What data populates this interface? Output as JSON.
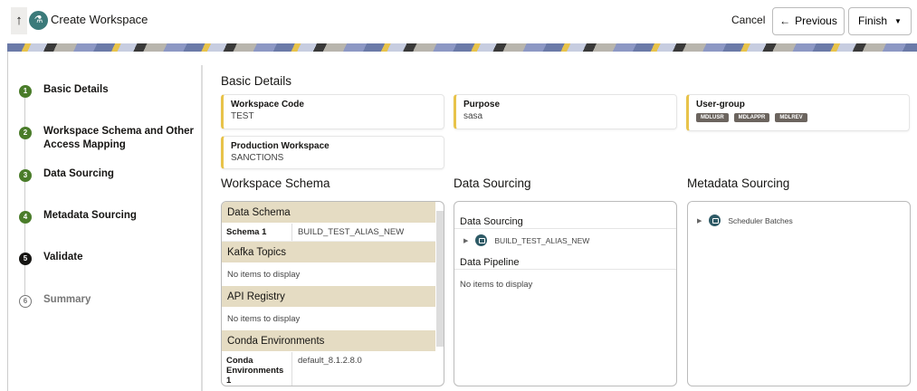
{
  "header": {
    "title": "Create Workspace",
    "cancel": "Cancel",
    "previous": "Previous",
    "finish": "Finish"
  },
  "steps": [
    {
      "num": "1",
      "label": "Basic Details",
      "state": "complete"
    },
    {
      "num": "2",
      "label": "Workspace Schema and Other Access Mapping",
      "state": "complete"
    },
    {
      "num": "3",
      "label": "Data Sourcing",
      "state": "complete"
    },
    {
      "num": "4",
      "label": "Metadata Sourcing",
      "state": "complete"
    },
    {
      "num": "5",
      "label": "Validate",
      "state": "current"
    },
    {
      "num": "6",
      "label": "Summary",
      "state": "pending"
    }
  ],
  "basic": {
    "heading": "Basic Details",
    "code_label": "Workspace Code",
    "code": "TEST",
    "purpose_label": "Purpose",
    "purpose": "sasa",
    "ug_label": "User-group",
    "ug": [
      "MDLUSR",
      "MDLAPPR",
      "MDLREV"
    ],
    "prod_label": "Production Workspace",
    "prod": "SANCTIONS"
  },
  "schema": {
    "heading": "Workspace Schema",
    "data_schema": "Data Schema",
    "schema1_k": "Schema 1",
    "schema1_v": "BUILD_TEST_ALIAS_NEW",
    "kafka": "Kafka Topics",
    "kafka_empty": "No items to display",
    "api": "API Registry",
    "api_empty": "No items to display",
    "conda": "Conda Environments",
    "conda1_k": "Conda Environments 1",
    "conda1_v": "default_8.1.2.8.0"
  },
  "sourcing": {
    "heading": "Data Sourcing",
    "sub1": "Data Sourcing",
    "node": "BUILD_TEST_ALIAS_NEW",
    "sub2": "Data Pipeline",
    "empty": "No items to display"
  },
  "metadata": {
    "heading": "Metadata Sourcing",
    "node": "Scheduler Batches"
  },
  "colors": {
    "complete": "#4a7c2a",
    "current": "#161513",
    "accent": "#e8c34a",
    "section": "#e5dcc3"
  }
}
